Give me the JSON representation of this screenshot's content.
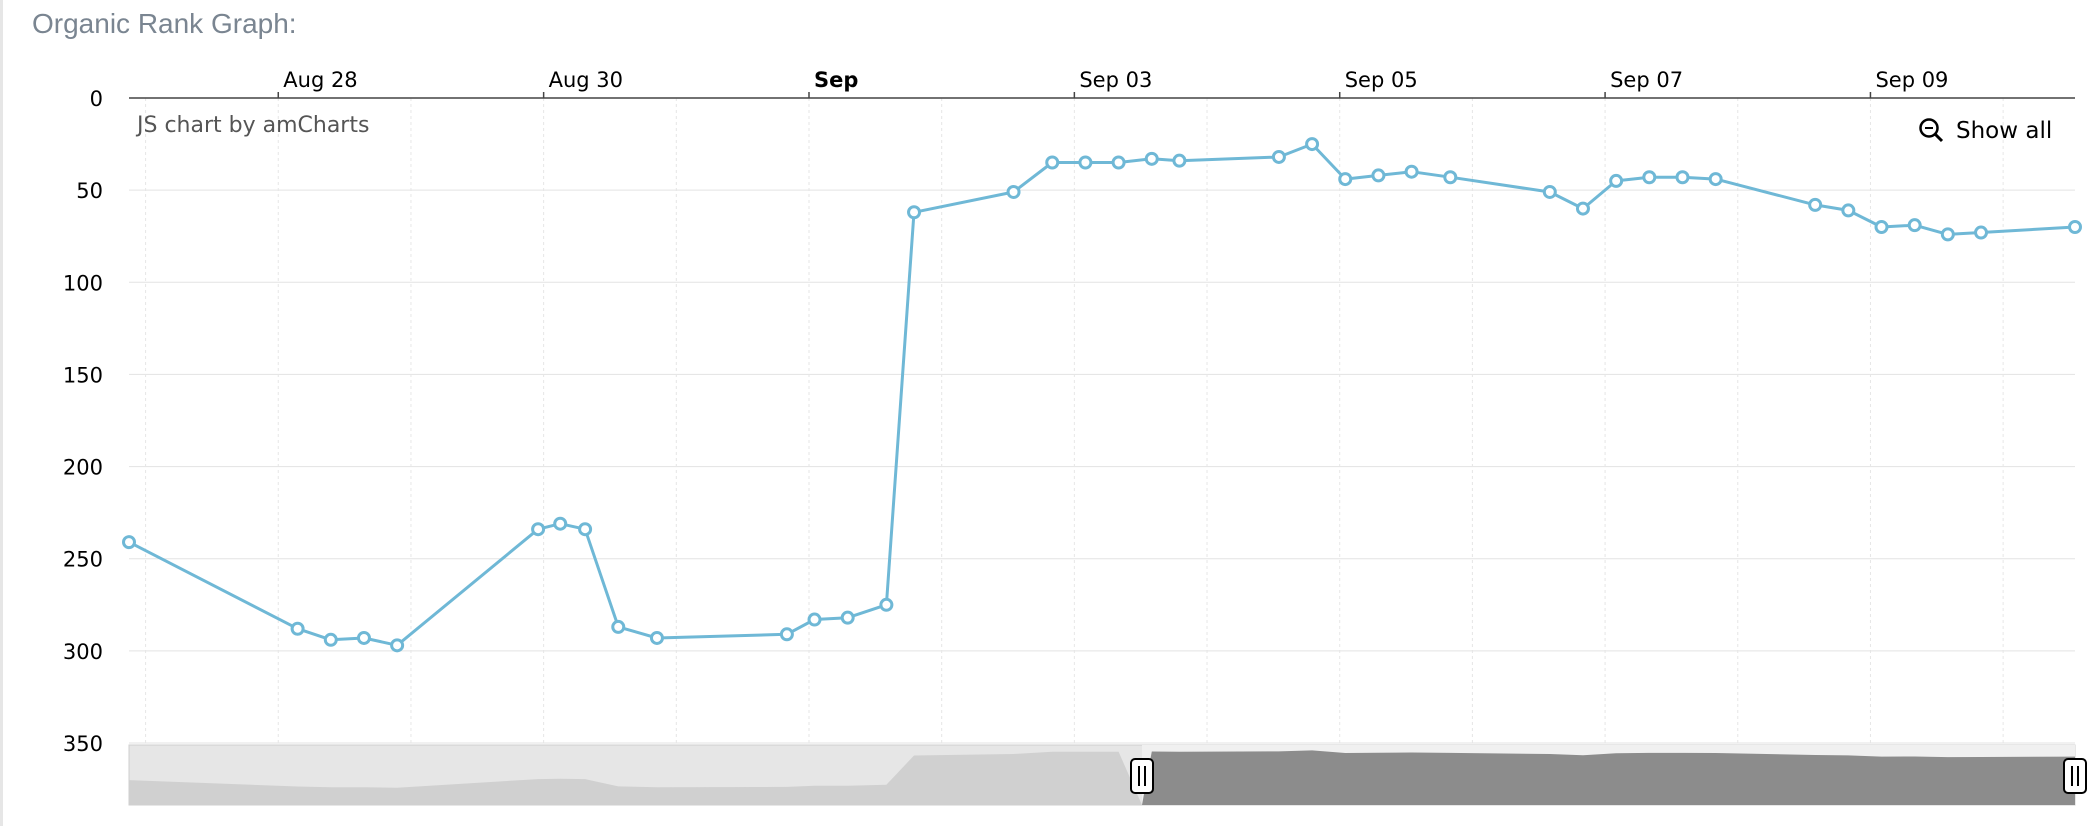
{
  "section": {
    "title": "Organic Rank Graph:"
  },
  "credit": "JS chart by amCharts",
  "zoom": {
    "show_all_label": "Show all"
  },
  "chart_data": {
    "type": "line",
    "title": "",
    "xlabel": "",
    "ylabel": "",
    "y_reversed": true,
    "ylim": [
      350,
      0
    ],
    "y_ticks": [
      0,
      50,
      100,
      150,
      200,
      250,
      300,
      350
    ],
    "x_range": [
      "2022-08-26T21:00",
      "2022-09-10T13:00"
    ],
    "x_ticks": [
      {
        "date": "2022-08-28",
        "label": "Aug 28",
        "bold": false
      },
      {
        "date": "2022-08-30",
        "label": "Aug 30",
        "bold": false
      },
      {
        "date": "2022-09-01",
        "label": "Sep",
        "bold": true
      },
      {
        "date": "2022-09-03",
        "label": "Sep 03",
        "bold": false
      },
      {
        "date": "2022-09-05",
        "label": "Sep 05",
        "bold": false
      },
      {
        "date": "2022-09-07",
        "label": "Sep 07",
        "bold": false
      },
      {
        "date": "2022-09-09",
        "label": "Sep 09",
        "bold": false
      }
    ],
    "grid": true,
    "line_color": "#6fb8d6",
    "series": [
      {
        "points": [
          [
            "2022-08-26T21:00",
            241
          ],
          [
            "2022-08-28T03:30",
            288
          ],
          [
            "2022-08-28T09:30",
            294
          ],
          [
            "2022-08-28T15:30",
            293
          ],
          [
            "2022-08-28T21:30",
            297
          ],
          [
            "2022-08-29T23:00",
            234
          ],
          [
            "2022-08-30T03:00",
            231
          ],
          [
            "2022-08-30T07:30",
            234
          ],
          [
            "2022-08-30T13:30",
            287
          ],
          [
            "2022-08-30T20:30",
            293
          ],
          [
            "2022-08-31T20:00",
            291
          ],
          [
            "2022-09-01T01:00",
            283
          ],
          [
            "2022-09-01T07:00",
            282
          ],
          [
            "2022-09-01T14:00",
            275
          ],
          [
            "2022-09-01T19:00",
            62
          ],
          [
            "2022-09-02T13:00",
            51
          ],
          [
            "2022-09-02T20:00",
            35
          ],
          [
            "2022-09-03T02:00",
            35
          ],
          [
            "2022-09-03T08:00",
            35
          ],
          [
            "2022-09-03T14:00",
            33
          ],
          [
            "2022-09-03T19:00",
            34
          ],
          [
            "2022-09-04T13:00",
            32
          ],
          [
            "2022-09-04T19:00",
            25
          ],
          [
            "2022-09-05T01:00",
            44
          ],
          [
            "2022-09-05T07:00",
            42
          ],
          [
            "2022-09-05T13:00",
            40
          ],
          [
            "2022-09-05T20:00",
            43
          ],
          [
            "2022-09-06T14:00",
            51
          ],
          [
            "2022-09-06T20:00",
            60
          ],
          [
            "2022-09-07T02:00",
            45
          ],
          [
            "2022-09-07T08:00",
            43
          ],
          [
            "2022-09-07T14:00",
            43
          ],
          [
            "2022-09-07T20:00",
            44
          ],
          [
            "2022-09-08T14:00",
            58
          ],
          [
            "2022-09-08T20:00",
            61
          ],
          [
            "2022-09-09T02:00",
            70
          ],
          [
            "2022-09-09T08:00",
            69
          ],
          [
            "2022-09-09T14:00",
            74
          ],
          [
            "2022-09-09T20:00",
            73
          ],
          [
            "2022-09-10T13:00",
            70
          ]
        ]
      }
    ]
  }
}
